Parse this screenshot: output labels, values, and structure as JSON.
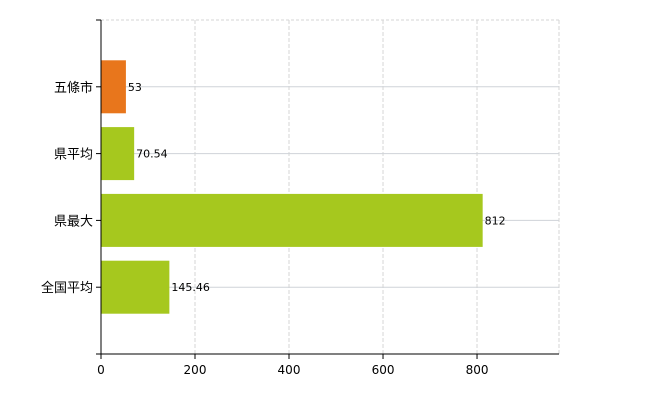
{
  "chart_data": {
    "type": "bar",
    "orientation": "horizontal",
    "categories": [
      "五條市",
      "県平均",
      "県最大",
      "全国平均"
    ],
    "values": [
      53,
      70.54,
      812,
      145.46
    ],
    "value_labels": [
      "53",
      "70.54",
      "812",
      "145.46"
    ],
    "bar_colors": [
      "#e8761c",
      "#a6c81e",
      "#a6c81e",
      "#a6c81e"
    ],
    "xlim": [
      0,
      974.4
    ],
    "xticks": [
      0,
      200,
      400,
      600,
      800
    ],
    "xtick_labels": [
      "0",
      "200",
      "400",
      "600",
      "800"
    ],
    "title": "",
    "xlabel": "",
    "ylabel": "",
    "grid": true,
    "legend": "none"
  }
}
